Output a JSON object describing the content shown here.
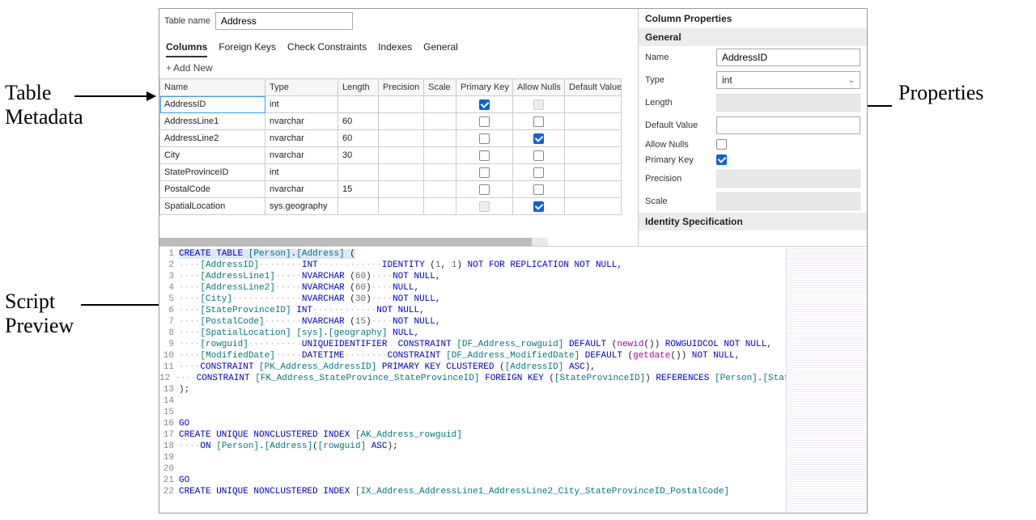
{
  "callouts": {
    "table_metadata": "Table\nMetadata",
    "script_preview": "Script\nPreview",
    "properties": "Properties"
  },
  "table_name_label": "Table name",
  "table_name_value": "Address",
  "tabs": {
    "columns": "Columns",
    "foreign_keys": "Foreign Keys",
    "check_constraints": "Check Constraints",
    "indexes": "Indexes",
    "general": "General"
  },
  "add_new": "Add New",
  "grid": {
    "headers": {
      "name": "Name",
      "type": "Type",
      "length": "Length",
      "precision": "Precision",
      "scale": "Scale",
      "pk": "Primary Key",
      "nulls": "Allow Nulls",
      "default": "Default Value"
    },
    "rows": [
      {
        "name": "AddressID",
        "type": "int",
        "length": "",
        "pk": true,
        "nulls": false,
        "nulls_disabled": true,
        "selected": true
      },
      {
        "name": "AddressLine1",
        "type": "nvarchar",
        "length": "60",
        "pk": false,
        "nulls": false
      },
      {
        "name": "AddressLine2",
        "type": "nvarchar",
        "length": "60",
        "pk": false,
        "nulls": true
      },
      {
        "name": "City",
        "type": "nvarchar",
        "length": "30",
        "pk": false,
        "nulls": false
      },
      {
        "name": "StateProvinceID",
        "type": "int",
        "length": "",
        "pk": false,
        "nulls": false
      },
      {
        "name": "PostalCode",
        "type": "nvarchar",
        "length": "15",
        "pk": false,
        "nulls": false
      },
      {
        "name": "SpatialLocation",
        "type": "sys.geography",
        "length": "",
        "pk": false,
        "pk_disabled": true,
        "nulls": true
      }
    ]
  },
  "props": {
    "title": "Column Properties",
    "general": "General",
    "name_label": "Name",
    "name_value": "AddressID",
    "type_label": "Type",
    "type_value": "int",
    "length_label": "Length",
    "default_label": "Default Value",
    "default_value": "",
    "nulls_label": "Allow Nulls",
    "nulls_value": false,
    "pk_label": "Primary Key",
    "pk_value": true,
    "precision_label": "Precision",
    "scale_label": "Scale",
    "identity": "Identity Specification"
  },
  "sql": {
    "colors": {
      "kw": "#0000cc",
      "id": "#007a7a",
      "fn": "#b000b0",
      "num": "#666666",
      "dots": "#bbbbbb"
    },
    "lines": [
      [
        [
          "kw",
          "CREATE TABLE "
        ],
        [
          "id",
          "[Person]"
        ],
        [
          "",
          "."
        ],
        [
          "id",
          "[Address]"
        ],
        [
          "",
          " ("
        ]
      ],
      [
        [
          "dots",
          "····"
        ],
        [
          "id",
          "[AddressID]"
        ],
        [
          "dots",
          "········"
        ],
        [
          "kw",
          "INT"
        ],
        [
          "dots",
          "············"
        ],
        [
          "kw",
          "IDENTITY"
        ],
        [
          "",
          " ("
        ],
        [
          "num",
          "1"
        ],
        [
          "",
          ", "
        ],
        [
          "num",
          "1"
        ],
        [
          "",
          ") "
        ],
        [
          "kw",
          "NOT"
        ],
        [
          "",
          " "
        ],
        [
          "kw",
          "FOR REPLICATION NOT NULL"
        ],
        [
          "",
          ","
        ]
      ],
      [
        [
          "dots",
          "····"
        ],
        [
          "id",
          "[AddressLine1]"
        ],
        [
          "dots",
          "·····"
        ],
        [
          "kw",
          "NVARCHAR"
        ],
        [
          "",
          " ("
        ],
        [
          "num",
          "60"
        ],
        [
          "",
          ")"
        ],
        [
          "dots",
          "····"
        ],
        [
          "kw",
          "NOT NULL"
        ],
        [
          "",
          ","
        ]
      ],
      [
        [
          "dots",
          "····"
        ],
        [
          "id",
          "[AddressLine2]"
        ],
        [
          "dots",
          "·····"
        ],
        [
          "kw",
          "NVARCHAR"
        ],
        [
          "",
          " ("
        ],
        [
          "num",
          "60"
        ],
        [
          "",
          ")"
        ],
        [
          "dots",
          "····"
        ],
        [
          "kw",
          "NULL"
        ],
        [
          "",
          ","
        ]
      ],
      [
        [
          "dots",
          "····"
        ],
        [
          "id",
          "[City]"
        ],
        [
          "dots",
          "·············"
        ],
        [
          "kw",
          "NVARCHAR"
        ],
        [
          "",
          " ("
        ],
        [
          "num",
          "30"
        ],
        [
          "",
          ")"
        ],
        [
          "dots",
          "····"
        ],
        [
          "kw",
          "NOT NULL"
        ],
        [
          "",
          ","
        ]
      ],
      [
        [
          "dots",
          "····"
        ],
        [
          "id",
          "[StateProvinceID]"
        ],
        [
          "",
          " "
        ],
        [
          "kw",
          "INT"
        ],
        [
          "dots",
          "············"
        ],
        [
          "kw",
          "NOT NULL"
        ],
        [
          "",
          ","
        ]
      ],
      [
        [
          "dots",
          "····"
        ],
        [
          "id",
          "[PostalCode]"
        ],
        [
          "dots",
          "·······"
        ],
        [
          "kw",
          "NVARCHAR"
        ],
        [
          "",
          " ("
        ],
        [
          "num",
          "15"
        ],
        [
          "",
          ")"
        ],
        [
          "dots",
          "····"
        ],
        [
          "kw",
          "NOT NULL"
        ],
        [
          "",
          ","
        ]
      ],
      [
        [
          "dots",
          "····"
        ],
        [
          "id",
          "[SpatialLocation]"
        ],
        [
          "",
          " "
        ],
        [
          "id",
          "[sys]"
        ],
        [
          "",
          "."
        ],
        [
          "id",
          "[geography]"
        ],
        [
          "",
          " "
        ],
        [
          "kw",
          "NULL"
        ],
        [
          "",
          ","
        ]
      ],
      [
        [
          "dots",
          "····"
        ],
        [
          "id",
          "[rowguid]"
        ],
        [
          "dots",
          "··········"
        ],
        [
          "kw",
          "UNIQUEIDENTIFIER"
        ],
        [
          "",
          "  "
        ],
        [
          "kw",
          "CONSTRAINT"
        ],
        [
          "",
          " "
        ],
        [
          "id",
          "[DF_Address_rowguid]"
        ],
        [
          "",
          " "
        ],
        [
          "kw",
          "DEFAULT"
        ],
        [
          "",
          " ("
        ],
        [
          "fn",
          "newid"
        ],
        [
          "",
          "()) "
        ],
        [
          "kw",
          "ROWGUIDCOL NOT NULL"
        ],
        [
          "",
          ","
        ]
      ],
      [
        [
          "dots",
          "····"
        ],
        [
          "id",
          "[ModifiedDate]"
        ],
        [
          "dots",
          "·····"
        ],
        [
          "kw",
          "DATETIME"
        ],
        [
          "dots",
          "········"
        ],
        [
          "kw",
          "CONSTRAINT"
        ],
        [
          "",
          " "
        ],
        [
          "id",
          "[DF_Address_ModifiedDate]"
        ],
        [
          "",
          " "
        ],
        [
          "kw",
          "DEFAULT"
        ],
        [
          "",
          " ("
        ],
        [
          "fn",
          "getdate"
        ],
        [
          "",
          "()) "
        ],
        [
          "kw",
          "NOT NULL"
        ],
        [
          "",
          ","
        ]
      ],
      [
        [
          "dots",
          "····"
        ],
        [
          "kw",
          "CONSTRAINT"
        ],
        [
          "",
          " "
        ],
        [
          "id",
          "[PK_Address_AddressID]"
        ],
        [
          "",
          " "
        ],
        [
          "kw",
          "PRIMARY KEY CLUSTERED"
        ],
        [
          "",
          " ("
        ],
        [
          "id",
          "[AddressID]"
        ],
        [
          "",
          " "
        ],
        [
          "kw",
          "ASC"
        ],
        [
          "",
          "),"
        ]
      ],
      [
        [
          "dots",
          "····"
        ],
        [
          "kw",
          "CONSTRAINT"
        ],
        [
          "",
          " "
        ],
        [
          "id",
          "[FK_Address_StateProvince_StateProvinceID]"
        ],
        [
          "",
          " "
        ],
        [
          "kw",
          "FOREIGN KEY"
        ],
        [
          "",
          " ("
        ],
        [
          "id",
          "[StateProvinceID]"
        ],
        [
          "",
          ") "
        ],
        [
          "kw",
          "REFERENCES"
        ],
        [
          "",
          " "
        ],
        [
          "id",
          "[Person]"
        ],
        [
          "",
          "."
        ],
        [
          "id",
          "[StateProvince"
        ]
      ],
      [
        [
          "",
          ");"
        ]
      ],
      [
        [
          "",
          ""
        ]
      ],
      [
        [
          "",
          ""
        ]
      ],
      [
        [
          "kw",
          "GO"
        ]
      ],
      [
        [
          "kw",
          "CREATE UNIQUE NONCLUSTERED INDEX"
        ],
        [
          "",
          " "
        ],
        [
          "id",
          "[AK_Address_rowguid]"
        ]
      ],
      [
        [
          "dots",
          "····"
        ],
        [
          "kw",
          "ON"
        ],
        [
          "",
          " "
        ],
        [
          "id",
          "[Person]"
        ],
        [
          "",
          "."
        ],
        [
          "id",
          "[Address]"
        ],
        [
          "",
          "("
        ],
        [
          "id",
          "[rowguid]"
        ],
        [
          "",
          " "
        ],
        [
          "kw",
          "ASC"
        ],
        [
          "",
          ");"
        ]
      ],
      [
        [
          "",
          ""
        ]
      ],
      [
        [
          "",
          ""
        ]
      ],
      [
        [
          "kw",
          "GO"
        ]
      ],
      [
        [
          "kw",
          "CREATE UNIQUE NONCLUSTERED INDEX"
        ],
        [
          "",
          " "
        ],
        [
          "id",
          "[IX_Address_AddressLine1_AddressLine2_City_StateProvinceID_PostalCode]"
        ]
      ]
    ]
  }
}
